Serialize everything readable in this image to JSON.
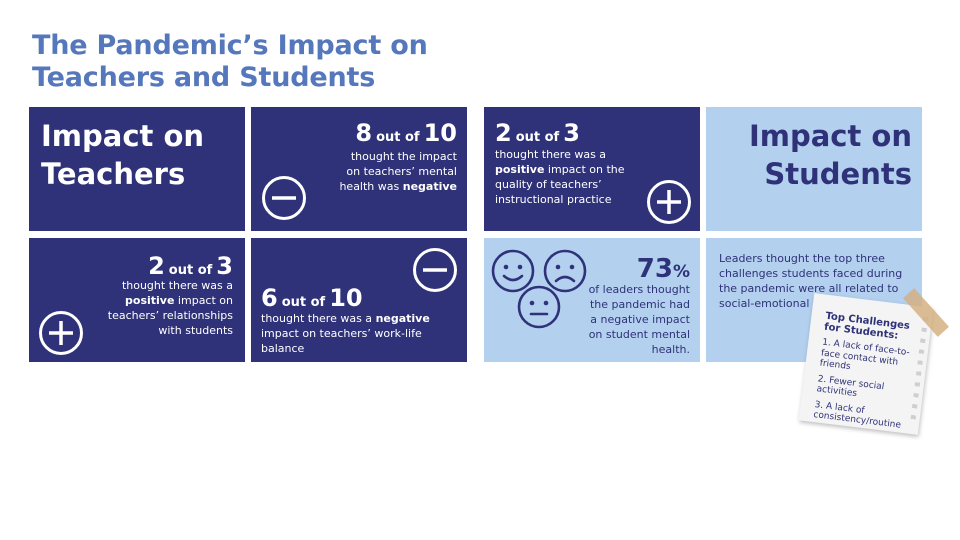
{
  "title_line1": "The Pandemic’s Impact on",
  "title_line2": "Teachers and Students",
  "teachers_heading": {
    "line1": "Impact on",
    "line2": "Teachers"
  },
  "students_heading": {
    "line1": "Impact on",
    "line2": "Students"
  },
  "stat_mental_health": {
    "num": "8",
    "of": "out of",
    "den": "10",
    "text_a": "thought the impact on teachers’ mental health was ",
    "text_b": "negative"
  },
  "stat_instruction": {
    "num": "2",
    "of": "out of",
    "den": "3",
    "text_a": "thought there was a ",
    "text_b": "positive",
    "text_c": " impact on the quality of teachers’ instructional practice"
  },
  "stat_relationships": {
    "num": "2",
    "of": "out of",
    "den": "3",
    "text_a": "thought there was a ",
    "text_b": "positive",
    "text_c": " impact on teachers’ relationships with students"
  },
  "stat_worklife": {
    "num": "6",
    "of": "out of",
    "den": "10",
    "text_a": "thought there was a ",
    "text_b": "negative",
    "text_c": " impact on teachers’ work-life balance"
  },
  "stat_students": {
    "pct_num": "73",
    "pct_sign": "%",
    "text": "of leaders thought the pandemic had a negative impact on student mental health."
  },
  "challenges_text": "Leaders thought the top three challenges students faced during the pandemic were all related to social-emotional wellbeing.",
  "note": {
    "title": "Top Challenges for Students:",
    "items": [
      "1. A lack of face-to-face contact with friends",
      "2. Fewer social activities",
      "3. A lack of consistency/routine"
    ]
  },
  "icons": {
    "minus": "minus-circle-icon",
    "plus": "plus-circle-icon",
    "faces": [
      "happy-face-icon",
      "sad-face-icon",
      "neutral-face-icon"
    ]
  },
  "colors": {
    "dark_navy": "#2f3278",
    "light_blue": "#b3d0ef",
    "title_blue": "#5577bb"
  }
}
